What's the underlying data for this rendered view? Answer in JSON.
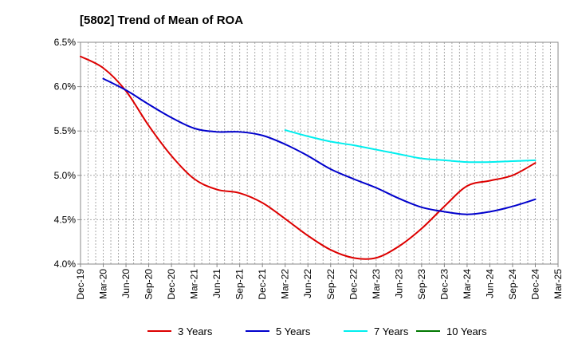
{
  "chart_data": {
    "type": "line",
    "title": "[5802]  Trend of Mean of ROA",
    "xlabel": "",
    "ylabel": "",
    "ylim": [
      4.0,
      6.5
    ],
    "y_ticks": [
      {
        "value": 4.0,
        "label": "4.0%"
      },
      {
        "value": 4.5,
        "label": "4.5%"
      },
      {
        "value": 5.0,
        "label": "5.0%"
      },
      {
        "value": 5.5,
        "label": "5.5%"
      },
      {
        "value": 6.0,
        "label": "6.0%"
      },
      {
        "value": 6.5,
        "label": "6.5%"
      }
    ],
    "categories": [
      "Dec-19",
      "Mar-20",
      "Jun-20",
      "Sep-20",
      "Dec-20",
      "Mar-21",
      "Jun-21",
      "Sep-21",
      "Dec-21",
      "Mar-22",
      "Jun-22",
      "Sep-22",
      "Dec-22",
      "Mar-23",
      "Jun-23",
      "Sep-23",
      "Dec-23",
      "Mar-24",
      "Jun-24",
      "Sep-24",
      "Dec-24",
      "Mar-25"
    ],
    "grid": true,
    "legend_position": "bottom",
    "series": [
      {
        "name": "3 Years",
        "color": "#dd0000",
        "values": [
          6.34,
          6.21,
          5.95,
          5.56,
          5.22,
          4.96,
          4.84,
          4.8,
          4.69,
          4.51,
          4.32,
          4.16,
          4.07,
          4.07,
          4.2,
          4.4,
          4.65,
          4.88,
          4.94,
          5.0,
          5.14,
          null
        ]
      },
      {
        "name": "5 Years",
        "color": "#0000cc",
        "values": [
          null,
          6.09,
          5.96,
          5.8,
          5.65,
          5.53,
          5.49,
          5.49,
          5.45,
          5.35,
          5.22,
          5.07,
          4.96,
          4.86,
          4.74,
          4.64,
          4.59,
          4.56,
          4.59,
          4.65,
          4.73,
          null
        ]
      },
      {
        "name": "7 Years",
        "color": "#00eeee",
        "values": [
          null,
          null,
          null,
          null,
          null,
          null,
          null,
          null,
          null,
          5.51,
          5.44,
          5.38,
          5.34,
          5.29,
          5.24,
          5.19,
          5.17,
          5.15,
          5.15,
          5.16,
          5.17,
          null
        ]
      },
      {
        "name": "10 Years",
        "color": "#007700",
        "values": [
          null,
          null,
          null,
          null,
          null,
          null,
          null,
          null,
          null,
          null,
          null,
          null,
          null,
          null,
          null,
          null,
          null,
          null,
          null,
          null,
          null,
          null
        ]
      }
    ]
  }
}
